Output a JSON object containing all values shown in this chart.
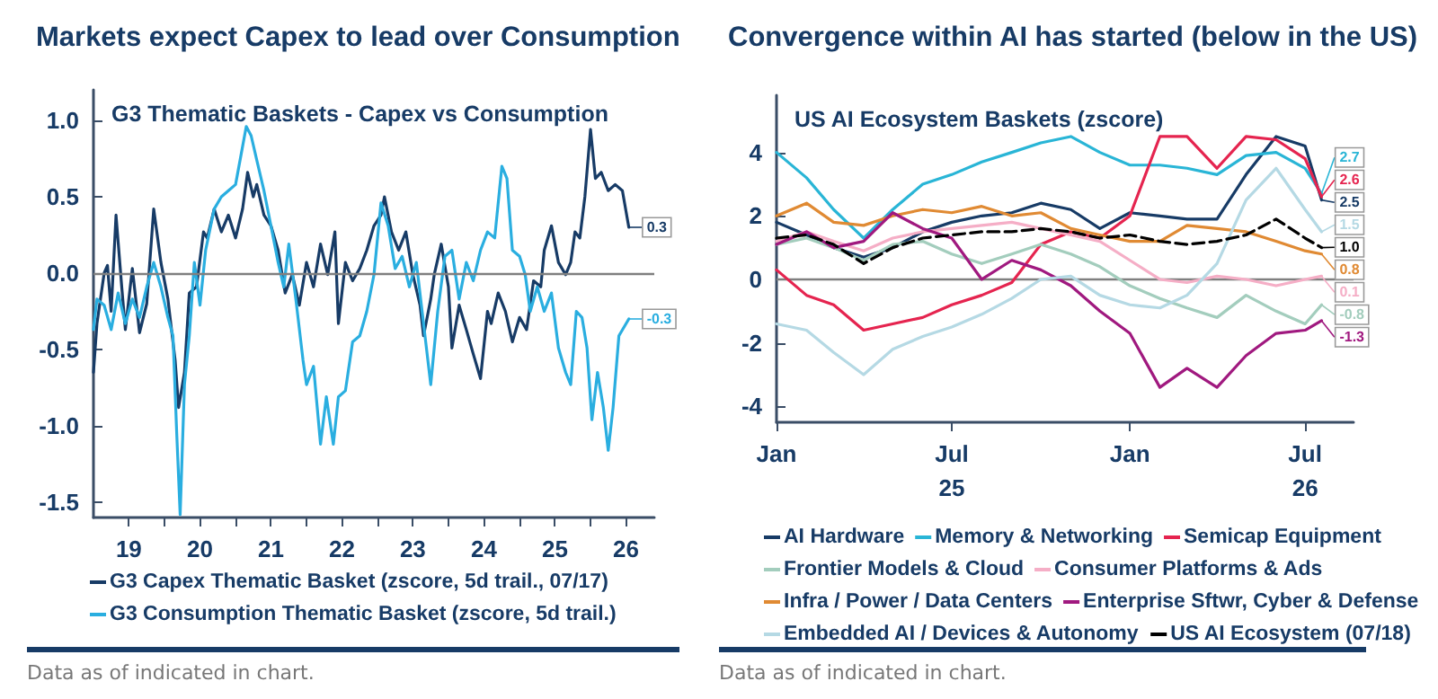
{
  "chart_data": [
    {
      "type": "line",
      "title": "Markets expect Capex to lead over Consumption",
      "subtitle": "G3 Thematic Baskets - Capex vs Consumption",
      "annotations": [
        "Data as of indicated in chart."
      ],
      "xlim": [
        "2019-01-01",
        "2026-11-25"
      ],
      "xticks": [
        {
          "value": "2019-07-02",
          "label": "19"
        },
        {
          "value": "2020-01-01",
          "label": null
        },
        {
          "value": "2020-07-02",
          "label": "20"
        },
        {
          "value": "2021-01-01",
          "label": null
        },
        {
          "value": "2021-07-02",
          "label": "21"
        },
        {
          "value": "2022-01-01",
          "label": null
        },
        {
          "value": "2022-07-02",
          "label": "22"
        },
        {
          "value": "2023-01-01",
          "label": null
        },
        {
          "value": "2023-07-02",
          "label": "23"
        },
        {
          "value": "2024-01-01",
          "label": null
        },
        {
          "value": "2024-07-02",
          "label": "24"
        },
        {
          "value": "2025-01-01",
          "label": null
        },
        {
          "value": "2025-07-02",
          "label": "25"
        },
        {
          "value": "2026-01-01",
          "label": null
        },
        {
          "value": "2026-07-02",
          "label": "26"
        }
      ],
      "ylim": [
        -1.6,
        1.2
      ],
      "yticks": [
        {
          "value": -1.5,
          "label": "-1.5"
        },
        {
          "value": -1,
          "label": "-1.0"
        },
        {
          "value": -0.5,
          "label": "-0.5"
        },
        {
          "value": 0,
          "label": "0.0"
        },
        {
          "value": 0.5,
          "label": "0.5"
        },
        {
          "value": 1,
          "label": "1.0"
        }
      ],
      "grid": false,
      "legend": "bottom",
      "marker": "none",
      "line_style": "solid",
      "ref_lines": [
        {
          "axis": "y",
          "value": 0,
          "color": "#7f7f7f"
        }
      ],
      "series": [
        {
          "name": "G3 Capex Thematic Basket (zscore, 5d trail., 07/17)",
          "color": "#173b66",
          "x": [
            "2019-01-01",
            "2019-01-19",
            "2019-02-25",
            "2019-03-14",
            "2019-04-02",
            "2019-04-27",
            "2019-05-27",
            "2019-06-14",
            "2019-07-20",
            "2019-08-26",
            "2019-10-02",
            "2019-11-07",
            "2019-12-14",
            "2020-01-19",
            "2020-02-25",
            "2020-03-14",
            "2020-04-13",
            "2020-05-08",
            "2020-06-14",
            "2020-07-20",
            "2020-08-08",
            "2020-09-13",
            "2020-10-20",
            "2020-11-25",
            "2021-01-01",
            "2021-02-06",
            "2021-03-04",
            "2021-04-02",
            "2021-04-20",
            "2021-05-27",
            "2021-07-02",
            "2021-08-08",
            "2021-09-13",
            "2021-10-20",
            "2021-11-25",
            "2022-01-01",
            "2022-02-06",
            "2022-03-14",
            "2022-04-20",
            "2022-05-27",
            "2022-06-14",
            "2022-07-20",
            "2022-08-26",
            "2022-10-02",
            "2022-11-07",
            "2022-12-14",
            "2023-01-19",
            "2023-02-06",
            "2023-03-14",
            "2023-04-20",
            "2023-05-27",
            "2023-07-02",
            "2023-08-08",
            "2023-08-26",
            "2023-10-02",
            "2023-10-20",
            "2023-11-25",
            "2024-01-01",
            "2024-01-19",
            "2024-02-25",
            "2024-04-02",
            "2024-05-08",
            "2024-06-14",
            "2024-07-20",
            "2024-08-08",
            "2024-09-13",
            "2024-10-20",
            "2024-11-25",
            "2025-01-01",
            "2025-02-06",
            "2025-03-14",
            "2025-04-20",
            "2025-05-08",
            "2025-06-14",
            "2025-07-20",
            "2025-08-26",
            "2025-09-21",
            "2025-10-13",
            "2025-11-07",
            "2025-12-03",
            "2026-01-01",
            "2026-01-26",
            "2026-02-25",
            "2026-04-02",
            "2026-05-08",
            "2026-06-14",
            "2026-07-17"
          ],
          "values": [
            -0.65,
            -0.33,
            0,
            0.05,
            -0.25,
            0.38,
            -0.1,
            -0.37,
            0.03,
            -0.39,
            -0.2,
            0.42,
            0.07,
            -0.17,
            -0.57,
            -0.88,
            -0.65,
            -0.13,
            -0.09,
            0.27,
            0.23,
            0.42,
            0.27,
            0.38,
            0.23,
            0.42,
            0.66,
            0.5,
            0.58,
            0.38,
            0.31,
            0.15,
            -0.13,
            -0.01,
            -0.21,
            0.07,
            -0.09,
            0.19,
            -0.01,
            0.27,
            -0.33,
            0.07,
            -0.05,
            0.03,
            0.15,
            0.31,
            0.38,
            0.5,
            0.27,
            0.15,
            0.27,
            -0.01,
            -0.21,
            -0.41,
            -0.17,
            -0.01,
            0.19,
            -0.09,
            -0.49,
            -0.21,
            -0.37,
            -0.53,
            -0.69,
            -0.25,
            -0.33,
            -0.13,
            -0.25,
            -0.45,
            -0.29,
            -0.37,
            -0.05,
            -0.09,
            0.15,
            0.31,
            0.07,
            -0.01,
            0.07,
            0.27,
            0.23,
            0.5,
            0.94,
            0.62,
            0.66,
            0.54,
            0.58,
            0.54,
            0.3
          ],
          "value_labels": [
            null,
            null,
            null,
            null,
            null,
            null,
            null,
            null,
            null,
            null,
            null,
            null,
            null,
            null,
            null,
            null,
            null,
            null,
            null,
            null,
            null,
            null,
            null,
            null,
            null,
            null,
            null,
            null,
            null,
            null,
            null,
            null,
            null,
            null,
            null,
            null,
            null,
            null,
            null,
            null,
            null,
            null,
            null,
            null,
            null,
            null,
            null,
            null,
            null,
            null,
            null,
            null,
            null,
            null,
            null,
            null,
            null,
            null,
            null,
            null,
            null,
            null,
            null,
            null,
            null,
            null,
            null,
            null,
            null,
            null,
            null,
            null,
            null,
            null,
            null,
            null,
            null,
            null,
            null,
            null,
            null,
            null,
            null,
            null,
            null,
            null,
            "0.3"
          ]
        },
        {
          "name": "G3 Consumption Thematic Basket (zscore, 5d trail.)",
          "color": "#2aaee0",
          "x": [
            "2019-01-01",
            "2019-01-19",
            "2019-02-25",
            "2019-04-02",
            "2019-05-08",
            "2019-06-14",
            "2019-07-20",
            "2019-08-26",
            "2019-10-02",
            "2019-11-07",
            "2019-12-14",
            "2020-01-19",
            "2020-02-14",
            "2020-03-04",
            "2020-03-22",
            "2020-04-13",
            "2020-05-08",
            "2020-06-03",
            "2020-07-02",
            "2020-07-31",
            "2020-09-13",
            "2020-10-20",
            "2020-11-25",
            "2021-01-01",
            "2021-01-30",
            "2021-02-25",
            "2021-03-22",
            "2021-04-20",
            "2021-05-27",
            "2021-07-02",
            "2021-08-08",
            "2021-09-06",
            "2021-10-02",
            "2021-11-07",
            "2021-12-14",
            "2022-01-01",
            "2022-02-06",
            "2022-03-14",
            "2022-04-13",
            "2022-05-19",
            "2022-06-14",
            "2022-07-20",
            "2022-08-26",
            "2022-10-02",
            "2022-11-07",
            "2022-12-14",
            "2023-01-19",
            "2023-02-25",
            "2023-04-02",
            "2023-05-08",
            "2023-06-14",
            "2023-07-20",
            "2023-08-26",
            "2023-10-02",
            "2023-11-07",
            "2023-12-14",
            "2024-01-19",
            "2024-02-25",
            "2024-04-02",
            "2024-05-08",
            "2024-06-14",
            "2024-07-20",
            "2024-08-26",
            "2024-10-02",
            "2024-10-28",
            "2024-11-25",
            "2025-01-01",
            "2025-01-30",
            "2025-02-25",
            "2025-04-02",
            "2025-05-08",
            "2025-06-14",
            "2025-07-20",
            "2025-08-26",
            "2025-09-21",
            "2025-10-20",
            "2025-11-18",
            "2025-12-14",
            "2026-01-08",
            "2026-02-06",
            "2026-03-08",
            "2026-04-02",
            "2026-04-27",
            "2026-05-27",
            "2026-07-17"
          ],
          "values": [
            -0.37,
            -0.17,
            -0.21,
            -0.37,
            -0.13,
            -0.33,
            -0.17,
            -0.29,
            -0.09,
            0.07,
            -0.09,
            -0.29,
            -0.41,
            -1.04,
            -1.58,
            -0.73,
            -0.41,
            0.07,
            -0.21,
            0.15,
            0.42,
            0.5,
            0.54,
            0.58,
            0.78,
            0.96,
            0.9,
            0.74,
            0.54,
            0.31,
            0.07,
            -0.09,
            0.19,
            -0.17,
            -0.57,
            -0.73,
            -0.61,
            -1.12,
            -0.81,
            -1.12,
            -0.81,
            -0.77,
            -0.45,
            -0.41,
            -0.25,
            -0.01,
            0.46,
            0.31,
            0.03,
            0.11,
            -0.09,
            0.07,
            -0.33,
            -0.73,
            -0.25,
            0.11,
            0.15,
            -0.17,
            0.07,
            -0.05,
            0.15,
            0.27,
            0.23,
            0.7,
            0.62,
            0.15,
            0.11,
            -0.01,
            -0.25,
            -0.09,
            -0.25,
            -0.13,
            -0.49,
            -0.65,
            -0.73,
            -0.25,
            -0.29,
            -0.49,
            -0.96,
            -0.65,
            -0.88,
            -1.16,
            -0.88,
            -0.41,
            -0.3
          ],
          "value_labels": [
            null,
            null,
            null,
            null,
            null,
            null,
            null,
            null,
            null,
            null,
            null,
            null,
            null,
            null,
            null,
            null,
            null,
            null,
            null,
            null,
            null,
            null,
            null,
            null,
            null,
            null,
            null,
            null,
            null,
            null,
            null,
            null,
            null,
            null,
            null,
            null,
            null,
            null,
            null,
            null,
            null,
            null,
            null,
            null,
            null,
            null,
            null,
            null,
            null,
            null,
            null,
            null,
            null,
            null,
            null,
            null,
            null,
            null,
            null,
            null,
            null,
            null,
            null,
            null,
            null,
            null,
            null,
            null,
            null,
            null,
            null,
            null,
            null,
            null,
            null,
            null,
            null,
            null,
            null,
            null,
            null,
            null,
            null,
            null,
            "-0.3"
          ]
        }
      ]
    },
    {
      "type": "line",
      "title": "Convergence within AI has started (below in the US)",
      "subtitle": "US AI Ecosystem Baskets (zscore)",
      "annotations": [
        "Data as of indicated in chart."
      ],
      "x": [
        "2025-01-01",
        "2025-02-01",
        "2025-03-01",
        "2025-04-01",
        "2025-05-01",
        "2025-06-01",
        "2025-07-01",
        "2025-08-01",
        "2025-09-01",
        "2025-10-01",
        "2025-11-01",
        "2025-12-01",
        "2026-01-01",
        "2026-02-01",
        "2026-03-01",
        "2026-04-01",
        "2026-05-01",
        "2026-06-01",
        "2026-07-01",
        "2026-07-18"
      ],
      "xlim": [
        "2025-01-01",
        "2026-08-20"
      ],
      "xticks": [
        {
          "value": "2025-01-01",
          "label": "Jan"
        },
        {
          "value": "2025-07-01",
          "label": "Jul\n25"
        },
        {
          "value": "2026-01-01",
          "label": "Jan"
        },
        {
          "value": "2026-07-01",
          "label": "Jul\n26"
        }
      ],
      "ylim": [
        -4.5,
        5.8
      ],
      "yticks": [
        -4,
        -2,
        0,
        2,
        4
      ],
      "grid": false,
      "legend": "bottom",
      "marker": "none",
      "line_style": "solid",
      "ref_lines": [
        {
          "axis": "y",
          "value": 0,
          "color": "#7f7f7f"
        }
      ],
      "series": [
        {
          "name": "AI Hardware",
          "color": "#173b66",
          "values": [
            1.8,
            1.4,
            1.0,
            0.7,
            1.0,
            1.5,
            1.8,
            2.0,
            2.1,
            2.4,
            2.2,
            1.6,
            2.1,
            2.0,
            1.9,
            1.9,
            3.3,
            4.5,
            4.2,
            2.5
          ],
          "value_labels": [
            null,
            null,
            null,
            null,
            null,
            null,
            null,
            null,
            null,
            null,
            null,
            null,
            null,
            null,
            null,
            null,
            null,
            null,
            null,
            "2.5"
          ]
        },
        {
          "name": "Memory & Networking",
          "color": "#29b5d6",
          "values": [
            4.0,
            3.2,
            2.2,
            1.3,
            2.2,
            3.0,
            3.3,
            3.7,
            4.0,
            4.3,
            4.5,
            4.0,
            3.6,
            3.6,
            3.5,
            3.3,
            3.9,
            4.0,
            3.5,
            2.7
          ],
          "value_labels": [
            null,
            null,
            null,
            null,
            null,
            null,
            null,
            null,
            null,
            null,
            null,
            null,
            null,
            null,
            null,
            null,
            null,
            null,
            null,
            "2.7"
          ]
        },
        {
          "name": "Semicap Equipment",
          "color": "#e5244f",
          "values": [
            0.3,
            -0.5,
            -0.8,
            -1.6,
            -1.4,
            -1.2,
            -0.8,
            -0.5,
            -0.1,
            1.1,
            1.5,
            1.3,
            2.0,
            4.5,
            4.5,
            3.5,
            4.5,
            4.4,
            3.8,
            2.6
          ],
          "value_labels": [
            null,
            null,
            null,
            null,
            null,
            null,
            null,
            null,
            null,
            null,
            null,
            null,
            null,
            null,
            null,
            null,
            null,
            null,
            null,
            "2.6"
          ]
        },
        {
          "name": "Frontier Models & Cloud",
          "color": "#a3cdbd",
          "values": [
            1.1,
            1.3,
            1.0,
            0.6,
            1.1,
            1.2,
            0.8,
            0.5,
            0.8,
            1.1,
            0.8,
            0.4,
            -0.2,
            -0.6,
            -0.9,
            -1.2,
            -0.5,
            -1.0,
            -1.4,
            -0.8
          ],
          "value_labels": [
            null,
            null,
            null,
            null,
            null,
            null,
            null,
            null,
            null,
            null,
            null,
            null,
            null,
            null,
            null,
            null,
            null,
            null,
            null,
            "-0.8"
          ]
        },
        {
          "name": "Consumer Platforms & Ads",
          "color": "#f5aec6",
          "values": [
            1.2,
            1.5,
            1.2,
            0.9,
            1.3,
            1.5,
            1.6,
            1.7,
            1.8,
            1.6,
            1.4,
            1.2,
            0.6,
            0.0,
            -0.1,
            0.1,
            0.0,
            -0.2,
            0.0,
            0.1
          ],
          "value_labels": [
            null,
            null,
            null,
            null,
            null,
            null,
            null,
            null,
            null,
            null,
            null,
            null,
            null,
            null,
            null,
            null,
            null,
            null,
            null,
            "0.1"
          ]
        },
        {
          "name": "Infra / Power / Data Centers",
          "color": "#e08a33",
          "values": [
            2.0,
            2.4,
            1.8,
            1.7,
            2.0,
            2.2,
            2.1,
            2.3,
            2.0,
            2.1,
            1.6,
            1.4,
            1.2,
            1.2,
            1.7,
            1.6,
            1.5,
            1.2,
            0.9,
            0.8
          ],
          "value_labels": [
            null,
            null,
            null,
            null,
            null,
            null,
            null,
            null,
            null,
            null,
            null,
            null,
            null,
            null,
            null,
            null,
            null,
            null,
            null,
            "0.8"
          ]
        },
        {
          "name": "Enterprise Sftwr, Cyber & Defense",
          "color": "#a0197f",
          "values": [
            1.1,
            1.5,
            1.0,
            1.2,
            2.1,
            1.6,
            1.3,
            0.0,
            0.6,
            0.3,
            -0.2,
            -1.0,
            -1.7,
            -3.4,
            -2.8,
            -3.4,
            -2.4,
            -1.7,
            -1.6,
            -1.3
          ],
          "value_labels": [
            null,
            null,
            null,
            null,
            null,
            null,
            null,
            null,
            null,
            null,
            null,
            null,
            null,
            null,
            null,
            null,
            null,
            null,
            null,
            "-1.3"
          ]
        },
        {
          "name": "Embedded AI / Devices & Autonomy",
          "color": "#b5d9e4",
          "values": [
            -1.4,
            -1.6,
            -2.3,
            -3.0,
            -2.2,
            -1.8,
            -1.5,
            -1.1,
            -0.6,
            0.0,
            0.1,
            -0.5,
            -0.8,
            -0.9,
            -0.5,
            0.5,
            2.5,
            3.5,
            2.2,
            1.5
          ],
          "value_labels": [
            null,
            null,
            null,
            null,
            null,
            null,
            null,
            null,
            null,
            null,
            null,
            null,
            null,
            null,
            null,
            null,
            null,
            null,
            null,
            "1.5"
          ]
        },
        {
          "name": "US AI Ecosystem (07/18)",
          "color": "#000000",
          "line_style": "dashed",
          "values": [
            1.3,
            1.4,
            1.1,
            0.5,
            1.0,
            1.3,
            1.4,
            1.5,
            1.5,
            1.6,
            1.5,
            1.3,
            1.4,
            1.2,
            1.1,
            1.2,
            1.4,
            1.9,
            1.3,
            1.0
          ],
          "value_labels": [
            null,
            null,
            null,
            null,
            null,
            null,
            null,
            null,
            null,
            null,
            null,
            null,
            null,
            null,
            null,
            null,
            null,
            null,
            null,
            "1.0"
          ]
        }
      ]
    }
  ]
}
